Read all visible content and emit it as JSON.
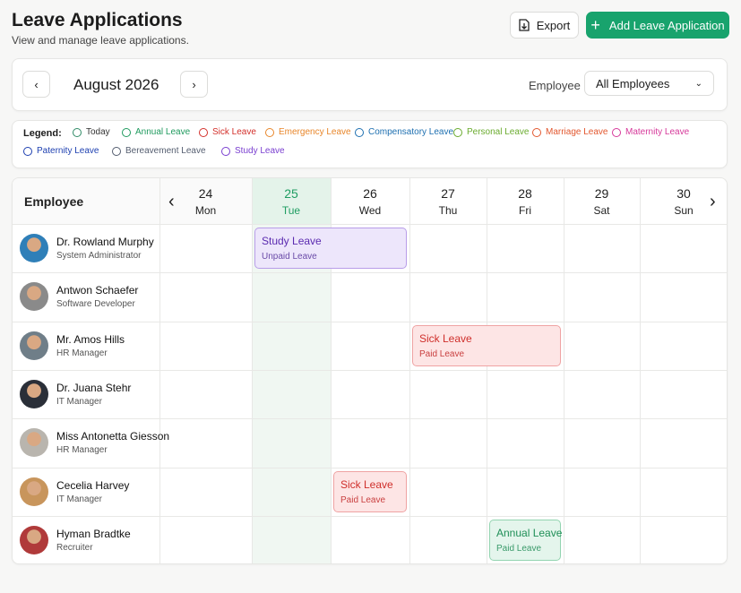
{
  "header": {
    "title": "Leave Applications",
    "subtitle": "View and manage leave applications.",
    "export": "Export",
    "add": "Add Leave Application"
  },
  "toolbar": {
    "month": "August 2026",
    "employee_label": "Employee",
    "employee_select": "All Employees"
  },
  "legend": {
    "label": "Legend:",
    "items": [
      "Today",
      "Annual Leave",
      "Sick Leave",
      "Emergency Leave",
      "Compensatory Leave",
      "Personal Leave",
      "Marriage Leave",
      "Maternity Leave",
      "Paternity Leave",
      "Bereavement Leave",
      "Study Leave"
    ]
  },
  "calendar": {
    "employee_header": "Employee",
    "days": [
      {
        "date": 24,
        "weekday": "Mon"
      },
      {
        "date": 25,
        "weekday": "Tue"
      },
      {
        "date": 26,
        "weekday": "Wed"
      },
      {
        "date": 27,
        "weekday": "Thu"
      },
      {
        "date": 28,
        "weekday": "Fri"
      },
      {
        "date": 29,
        "weekday": "Sat"
      },
      {
        "date": 30,
        "weekday": "Sun"
      }
    ],
    "employees": [
      {
        "name": "Dr. Rowland Murphy",
        "role": "System Administrator"
      },
      {
        "name": "Antwon Schaefer",
        "role": "Software Developer"
      },
      {
        "name": "Mr. Amos Hills",
        "role": "HR Manager"
      },
      {
        "name": "Dr. Juana Stehr",
        "role": "IT Manager"
      },
      {
        "name": "Miss Antonetta Giesson",
        "role": "HR Manager"
      },
      {
        "name": "Cecelia Harvey",
        "role": "IT Manager"
      },
      {
        "name": "Hyman Bradtke",
        "role": "Recruiter"
      }
    ],
    "leaves": [
      {
        "title": "Study Leave",
        "subtitle": "Unpaid Leave"
      },
      {
        "title": "Sick Leave",
        "subtitle": "Paid Leave"
      },
      {
        "title": "Sick Leave",
        "subtitle": "Paid Leave"
      },
      {
        "title": "Annual Leave",
        "subtitle": "Paid Leave"
      }
    ]
  }
}
